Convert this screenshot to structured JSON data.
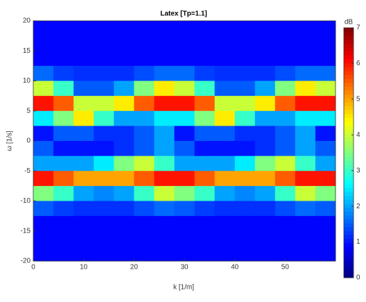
{
  "chart_data": {
    "type": "heatmap",
    "title": "Latex [Tp=1.1]",
    "xlabel": "k [1/m]",
    "ylabel": "ω [1/s]",
    "colorbar_label": "dB",
    "xlim": [
      0,
      60
    ],
    "ylim": [
      -20,
      20
    ],
    "xticks": [
      0,
      10,
      20,
      30,
      40,
      50
    ],
    "yticks": [
      -20,
      -15,
      -10,
      -5,
      0,
      5,
      10,
      15,
      20
    ],
    "xbins": [
      0,
      4,
      8,
      12,
      16,
      20,
      24,
      28,
      32,
      36,
      40,
      44,
      48,
      52,
      56,
      60
    ],
    "ybins": [
      20,
      17.5,
      15,
      12.5,
      10,
      7.5,
      5,
      2.5,
      0,
      -2.5,
      -5,
      -7.5,
      -10,
      -12.5,
      -15,
      -17.5,
      -20
    ],
    "zlim": [
      0,
      7
    ],
    "zticks": [
      0,
      1,
      2,
      3,
      4,
      5,
      6,
      7
    ],
    "colormap": "jet",
    "z": [
      [
        0.9,
        0.9,
        0.9,
        0.9,
        0.9,
        0.9,
        0.9,
        0.9,
        0.9,
        0.9,
        0.9,
        0.9,
        0.9,
        0.9,
        0.9
      ],
      [
        0.9,
        0.9,
        0.9,
        0.9,
        0.9,
        0.9,
        0.9,
        0.9,
        0.9,
        0.9,
        0.9,
        0.9,
        0.9,
        0.9,
        0.9
      ],
      [
        0.9,
        0.9,
        0.9,
        0.9,
        0.9,
        0.9,
        0.9,
        0.9,
        0.9,
        0.9,
        0.9,
        0.9,
        0.9,
        0.9,
        0.9
      ],
      [
        1.6,
        1.3,
        1.2,
        1.2,
        1.2,
        1.4,
        1.6,
        1.6,
        1.3,
        1.2,
        1.2,
        1.2,
        1.4,
        1.6,
        1.6
      ],
      [
        4,
        3,
        1.5,
        1.5,
        2,
        3.5,
        4.5,
        4,
        3,
        1.5,
        1.5,
        2,
        3.5,
        4.5,
        4
      ],
      [
        6,
        5.5,
        4,
        4,
        4.5,
        5.5,
        6,
        6,
        5.5,
        4,
        4,
        4.5,
        5.5,
        6,
        6
      ],
      [
        2.5,
        3.5,
        4.5,
        3,
        2,
        2,
        2.5,
        2.5,
        3.5,
        4.5,
        3,
        2,
        2,
        2.5,
        2.5
      ],
      [
        1,
        1.5,
        1.5,
        1.2,
        1.2,
        1.5,
        2,
        1,
        1.5,
        1.5,
        1.2,
        1.2,
        1.5,
        2,
        1
      ],
      [
        1.5,
        1,
        1,
        1,
        1.2,
        1.5,
        2,
        1.5,
        1,
        1,
        1,
        1.2,
        1.5,
        2,
        1.5
      ],
      [
        2,
        2,
        2,
        2.5,
        3.5,
        4,
        3,
        2,
        2,
        2,
        2.5,
        3.5,
        4,
        3,
        2
      ],
      [
        6,
        5.5,
        5,
        5,
        5,
        5.5,
        6,
        6,
        5.5,
        5,
        5,
        5,
        5.5,
        6,
        6
      ],
      [
        3.5,
        3,
        2,
        1.8,
        2,
        3,
        4,
        3.5,
        3,
        2,
        1.8,
        2,
        3,
        4,
        3.5
      ],
      [
        1.5,
        1.3,
        1.2,
        1.2,
        1.2,
        1.4,
        1.6,
        1.5,
        1.3,
        1.2,
        1.2,
        1.2,
        1.4,
        1.6,
        1.5
      ],
      [
        0.9,
        0.9,
        0.9,
        0.9,
        0.9,
        0.9,
        0.9,
        0.9,
        0.9,
        0.9,
        0.9,
        0.9,
        0.9,
        0.9,
        0.9
      ],
      [
        0.9,
        0.9,
        0.9,
        0.9,
        0.9,
        0.9,
        0.9,
        0.9,
        0.9,
        0.9,
        0.9,
        0.9,
        0.9,
        0.9,
        0.9
      ],
      [
        0.9,
        0.9,
        0.9,
        0.9,
        0.9,
        0.9,
        0.9,
        0.9,
        0.9,
        0.9,
        0.9,
        0.9,
        0.9,
        0.9,
        0.9
      ]
    ]
  }
}
